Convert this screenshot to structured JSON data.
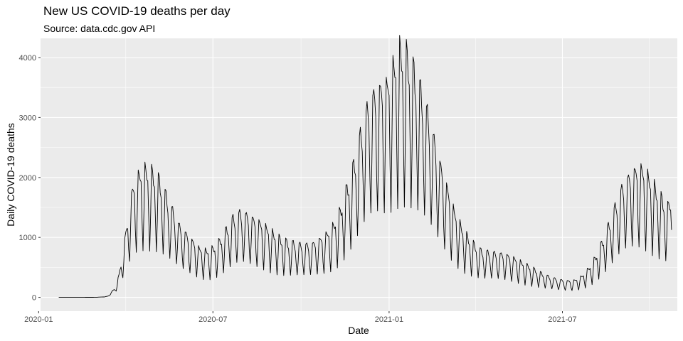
{
  "chart_data": {
    "type": "line",
    "title": "New US COVID-19 deaths per day",
    "subtitle": "Source: data.cdc.gov API",
    "xlabel": "Date",
    "ylabel": "Daily COVID-19 deaths",
    "xlim": [
      "2020-01-03",
      "2021-10-29"
    ],
    "ylim": [
      -230,
      4320
    ],
    "x_ticks": [
      "2020-01-01",
      "2020-07-01",
      "2021-01-01",
      "2021-07-01"
    ],
    "x_tick_labels": [
      "2020-01",
      "2020-07",
      "2021-01",
      "2021-07"
    ],
    "y_ticks": [
      0,
      1000,
      2000,
      3000,
      4000
    ],
    "y_tick_labels": [
      "0",
      "1000",
      "2000",
      "3000",
      "4000"
    ],
    "grid": true,
    "legend": "none",
    "colors": {
      "panel": "#ebebeb",
      "grid": "#ffffff",
      "line": "#000000",
      "tick_text": "#4d4d4d"
    },
    "weekly_oscillation": "strong weekday/weekend cycle; amplitude grows with level",
    "series": [
      {
        "points": [
          {
            "x": "2020-01-22",
            "y": 0
          },
          {
            "x": "2020-02-15",
            "y": 0
          },
          {
            "x": "2020-03-01",
            "y": 2
          },
          {
            "x": "2020-03-10",
            "y": 8
          },
          {
            "x": "2020-03-15",
            "y": 30
          },
          {
            "x": "2020-03-20",
            "y": 120
          },
          {
            "x": "2020-03-25",
            "y": 300
          },
          {
            "x": "2020-03-30",
            "y": 700
          },
          {
            "x": "2020-04-04",
            "y": 1100
          },
          {
            "x": "2020-04-08",
            "y": 1450
          },
          {
            "x": "2020-04-15",
            "y": 1650
          },
          {
            "x": "2020-04-22",
            "y": 1700
          },
          {
            "x": "2020-04-29",
            "y": 1650
          },
          {
            "x": "2020-05-06",
            "y": 1550
          },
          {
            "x": "2020-05-13",
            "y": 1350
          },
          {
            "x": "2020-05-20",
            "y": 1150
          },
          {
            "x": "2020-05-27",
            "y": 950
          },
          {
            "x": "2020-06-03",
            "y": 850
          },
          {
            "x": "2020-06-10",
            "y": 750
          },
          {
            "x": "2020-06-17",
            "y": 650
          },
          {
            "x": "2020-06-24",
            "y": 620
          },
          {
            "x": "2020-07-01",
            "y": 650
          },
          {
            "x": "2020-07-08",
            "y": 750
          },
          {
            "x": "2020-07-15",
            "y": 900
          },
          {
            "x": "2020-07-22",
            "y": 1050
          },
          {
            "x": "2020-07-29",
            "y": 1120
          },
          {
            "x": "2020-08-05",
            "y": 1100
          },
          {
            "x": "2020-08-12",
            "y": 1050
          },
          {
            "x": "2020-08-19",
            "y": 1000
          },
          {
            "x": "2020-08-26",
            "y": 930
          },
          {
            "x": "2020-09-02",
            "y": 850
          },
          {
            "x": "2020-09-09",
            "y": 780
          },
          {
            "x": "2020-09-16",
            "y": 740
          },
          {
            "x": "2020-09-23",
            "y": 720
          },
          {
            "x": "2020-09-30",
            "y": 700
          },
          {
            "x": "2020-10-07",
            "y": 700
          },
          {
            "x": "2020-10-14",
            "y": 720
          },
          {
            "x": "2020-10-21",
            "y": 780
          },
          {
            "x": "2020-10-28",
            "y": 850
          },
          {
            "x": "2020-11-04",
            "y": 960
          },
          {
            "x": "2020-11-11",
            "y": 1150
          },
          {
            "x": "2020-11-18",
            "y": 1450
          },
          {
            "x": "2020-11-25",
            "y": 1750
          },
          {
            "x": "2020-12-02",
            "y": 2150
          },
          {
            "x": "2020-12-09",
            "y": 2500
          },
          {
            "x": "2020-12-16",
            "y": 2700
          },
          {
            "x": "2020-12-23",
            "y": 2800
          },
          {
            "x": "2020-12-30",
            "y": 2850
          },
          {
            "x": "2021-01-06",
            "y": 3100
          },
          {
            "x": "2021-01-13",
            "y": 3300
          },
          {
            "x": "2021-01-20",
            "y": 3200
          },
          {
            "x": "2021-01-27",
            "y": 3000
          },
          {
            "x": "2021-02-03",
            "y": 2750
          },
          {
            "x": "2021-02-10",
            "y": 2450
          },
          {
            "x": "2021-02-17",
            "y": 2100
          },
          {
            "x": "2021-02-24",
            "y": 1750
          },
          {
            "x": "2021-03-03",
            "y": 1450
          },
          {
            "x": "2021-03-10",
            "y": 1150
          },
          {
            "x": "2021-03-17",
            "y": 950
          },
          {
            "x": "2021-03-24",
            "y": 800
          },
          {
            "x": "2021-03-31",
            "y": 700
          },
          {
            "x": "2021-04-07",
            "y": 620
          },
          {
            "x": "2021-04-14",
            "y": 600
          },
          {
            "x": "2021-04-21",
            "y": 590
          },
          {
            "x": "2021-04-28",
            "y": 580
          },
          {
            "x": "2021-05-05",
            "y": 560
          },
          {
            "x": "2021-05-12",
            "y": 520
          },
          {
            "x": "2021-05-19",
            "y": 470
          },
          {
            "x": "2021-05-26",
            "y": 420
          },
          {
            "x": "2021-06-02",
            "y": 370
          },
          {
            "x": "2021-06-09",
            "y": 320
          },
          {
            "x": "2021-06-16",
            "y": 280
          },
          {
            "x": "2021-06-23",
            "y": 250
          },
          {
            "x": "2021-06-30",
            "y": 230
          },
          {
            "x": "2021-07-07",
            "y": 220
          },
          {
            "x": "2021-07-14",
            "y": 230
          },
          {
            "x": "2021-07-21",
            "y": 280
          },
          {
            "x": "2021-07-28",
            "y": 380
          },
          {
            "x": "2021-08-04",
            "y": 520
          },
          {
            "x": "2021-08-11",
            "y": 720
          },
          {
            "x": "2021-08-18",
            "y": 950
          },
          {
            "x": "2021-08-25",
            "y": 1200
          },
          {
            "x": "2021-09-01",
            "y": 1450
          },
          {
            "x": "2021-09-08",
            "y": 1600
          },
          {
            "x": "2021-09-15",
            "y": 1700
          },
          {
            "x": "2021-09-22",
            "y": 1720
          },
          {
            "x": "2021-09-29",
            "y": 1600
          },
          {
            "x": "2021-10-06",
            "y": 1450
          },
          {
            "x": "2021-10-13",
            "y": 1300
          },
          {
            "x": "2021-10-20",
            "y": 1200
          },
          {
            "x": "2021-10-23",
            "y": 1400
          }
        ]
      }
    ]
  }
}
